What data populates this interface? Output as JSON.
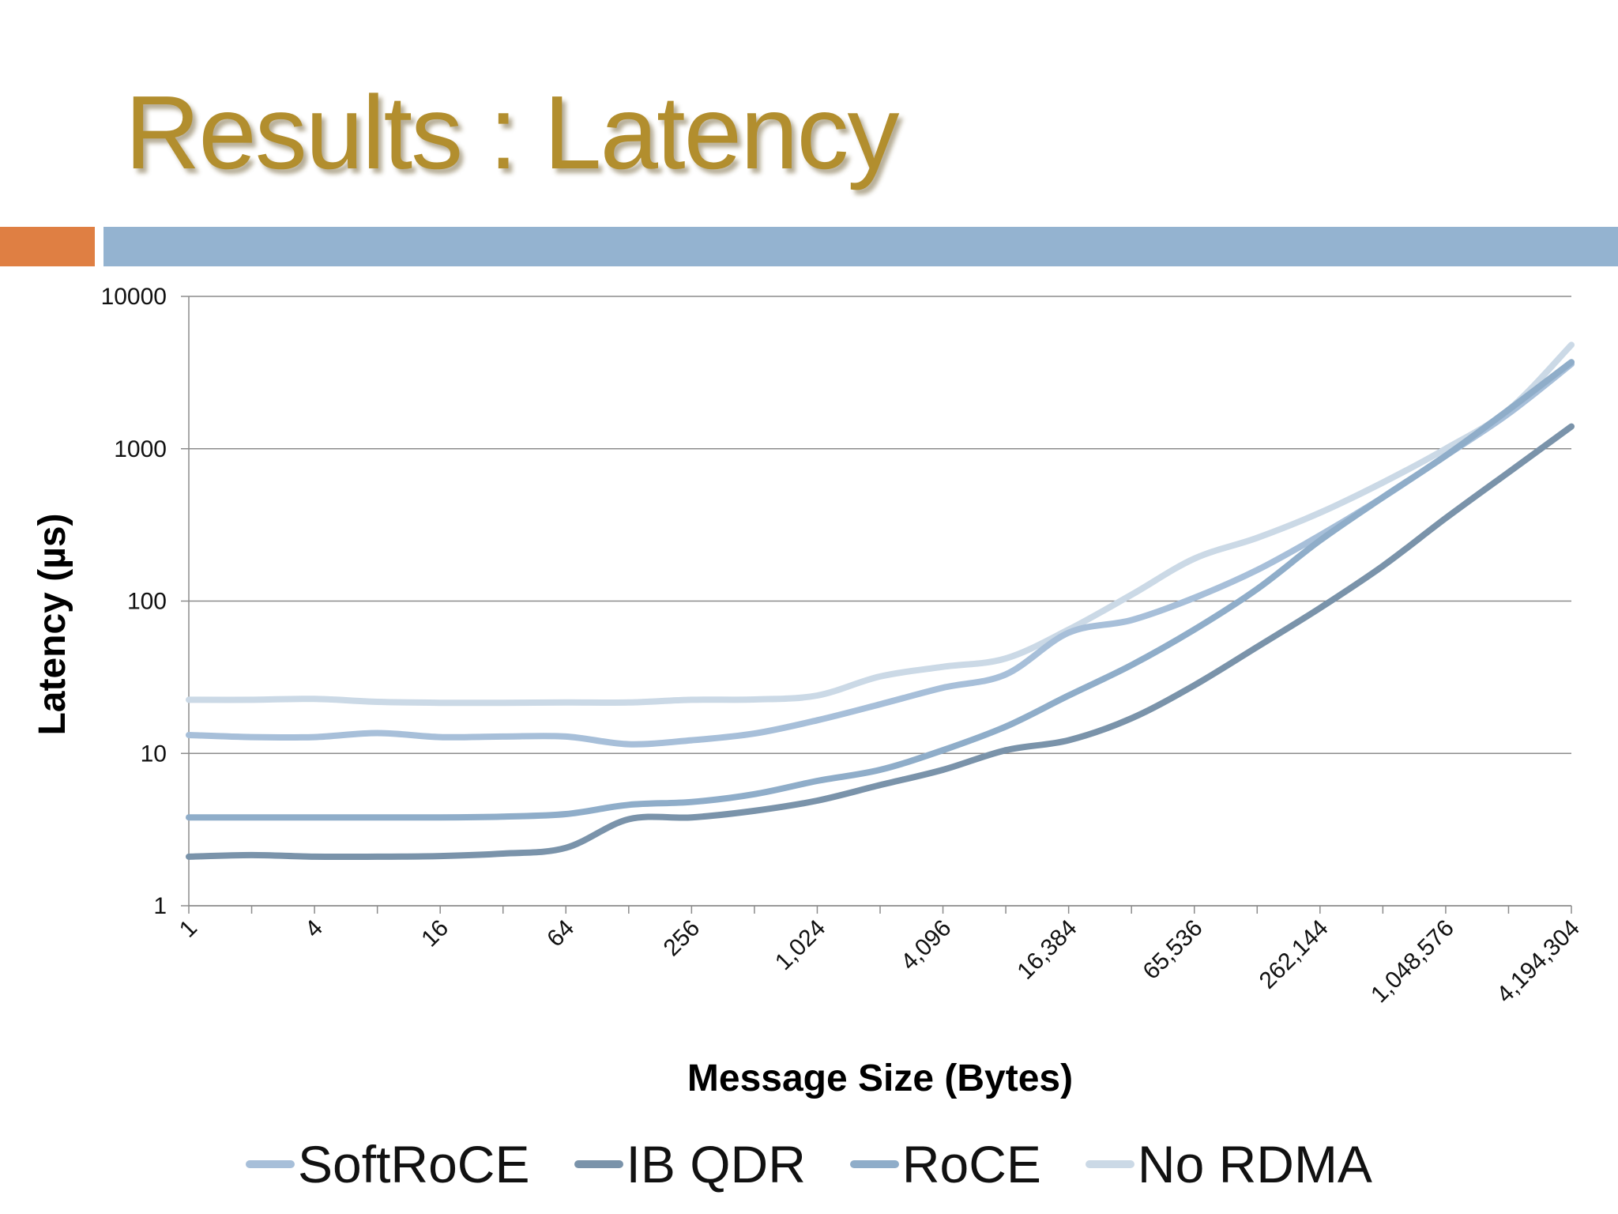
{
  "slide": {
    "title": "Results : Latency",
    "accent_left_color": "#df7f43",
    "accent_right_color": "#94b3d0",
    "title_color": "#b28e2e"
  },
  "chart_data": {
    "type": "line",
    "title": "",
    "xlabel": "Message Size (Bytes)",
    "ylabel": "Latency (µs)",
    "y_scale": "log",
    "ylim": [
      1,
      10000
    ],
    "y_ticks": [
      "1",
      "10",
      "100",
      "1000",
      "10000"
    ],
    "grid": true,
    "legend_position": "bottom",
    "x": [
      1,
      2,
      4,
      8,
      16,
      32,
      64,
      128,
      256,
      512,
      1024,
      2048,
      4096,
      8192,
      16384,
      32768,
      65536,
      131072,
      262144,
      524288,
      1048576,
      2097152,
      4194304
    ],
    "x_tick_labels": [
      "1",
      "4",
      "16",
      "64",
      "256",
      "1,024",
      "4,096",
      "16,384",
      "65,536",
      "262,144",
      "1,048,576",
      "4,194,304"
    ],
    "series": [
      {
        "name": "SoftRoCE",
        "color": "#a7bfd9",
        "values": [
          13.2,
          12.8,
          12.8,
          13.6,
          12.8,
          12.9,
          12.9,
          11.5,
          12.2,
          13.5,
          16.5,
          21,
          27,
          33,
          62,
          75,
          105,
          160,
          270,
          480,
          900,
          1700,
          3600
        ]
      },
      {
        "name": "IB QDR",
        "color": "#7a93aa",
        "values": [
          2.1,
          2.15,
          2.1,
          2.1,
          2.12,
          2.2,
          2.4,
          3.7,
          3.8,
          4.2,
          4.9,
          6.2,
          7.8,
          10.5,
          12.2,
          17,
          28,
          50,
          90,
          170,
          350,
          700,
          1400
        ]
      },
      {
        "name": "RoCE",
        "color": "#8fadc9",
        "values": [
          3.8,
          3.8,
          3.8,
          3.8,
          3.8,
          3.85,
          4.0,
          4.6,
          4.8,
          5.4,
          6.6,
          7.8,
          10.5,
          15,
          24,
          38,
          65,
          120,
          250,
          480,
          900,
          1800,
          3700
        ]
      },
      {
        "name": "No RDMA",
        "color": "#cbd9e6",
        "values": [
          22.5,
          22.5,
          22.8,
          21.8,
          21.5,
          21.5,
          21.6,
          21.6,
          22.5,
          22.6,
          24,
          32,
          37,
          42,
          65,
          110,
          190,
          260,
          380,
          600,
          1000,
          1800,
          4800
        ]
      }
    ]
  }
}
